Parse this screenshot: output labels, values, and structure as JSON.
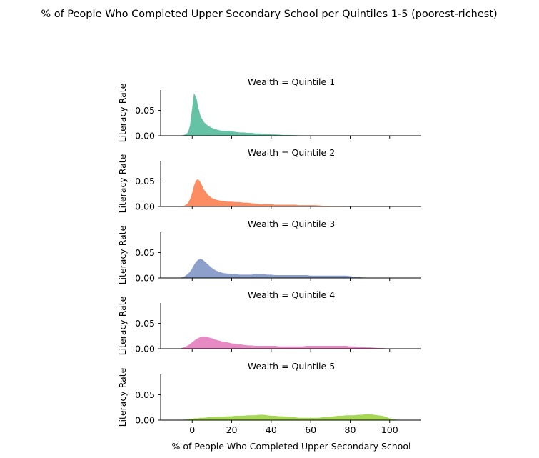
{
  "chart_data": {
    "type": "area",
    "title": "% of People Who Completed Upper Secondary School per Quintiles 1-5 (poorest-richest)",
    "xlabel": "% of People Who Completed Upper Secondary School",
    "ylabel": "Literacy Rate",
    "xlim": [
      -16,
      116
    ],
    "ylim": [
      0,
      0.09
    ],
    "x_ticks": [
      0,
      20,
      40,
      60,
      80,
      100
    ],
    "x_tick_labels": [
      "0",
      "20",
      "40",
      "60",
      "80",
      "100"
    ],
    "y_ticks": [
      0.0,
      0.05
    ],
    "y_tick_labels": [
      "0.00",
      "0.05"
    ],
    "grid": false,
    "facet_variable": "Wealth",
    "x": [
      -6,
      -4,
      -2,
      -1,
      0,
      1,
      2,
      3,
      4,
      5,
      6,
      8,
      10,
      12,
      14,
      16,
      18,
      20,
      22,
      24,
      26,
      28,
      30,
      32,
      34,
      36,
      38,
      40,
      42,
      44,
      46,
      48,
      50,
      52,
      54,
      56,
      58,
      60,
      62,
      64,
      66,
      68,
      70,
      72,
      74,
      76,
      78,
      80,
      82,
      84,
      86,
      88,
      90,
      92,
      94,
      96,
      98,
      100,
      102,
      104,
      106
    ],
    "series": [
      {
        "name": "Wealth = Quintile 1",
        "color": "#66c2a5",
        "values": [
          0,
          0.001,
          0.006,
          0.02,
          0.05,
          0.082,
          0.074,
          0.055,
          0.04,
          0.032,
          0.026,
          0.019,
          0.015,
          0.012,
          0.01,
          0.009,
          0.009,
          0.008,
          0.007,
          0.006,
          0.006,
          0.005,
          0.005,
          0.004,
          0.004,
          0.003,
          0.003,
          0.002,
          0.002,
          0.0015,
          0.001,
          0.001,
          0.0008,
          0.0005,
          0.0003,
          0.0002,
          0.0001,
          0,
          0,
          0,
          0,
          0,
          0,
          0,
          0,
          0,
          0,
          0,
          0,
          0,
          0,
          0,
          0,
          0,
          0,
          0,
          0,
          0,
          0,
          0,
          0
        ]
      },
      {
        "name": "Wealth = Quintile 2",
        "color": "#fc8d62",
        "values": [
          0,
          0.001,
          0.006,
          0.014,
          0.025,
          0.04,
          0.051,
          0.053,
          0.048,
          0.04,
          0.032,
          0.022,
          0.016,
          0.013,
          0.011,
          0.01,
          0.009,
          0.009,
          0.008,
          0.008,
          0.007,
          0.007,
          0.006,
          0.005,
          0.004,
          0.004,
          0.004,
          0.004,
          0.003,
          0.003,
          0.003,
          0.003,
          0.003,
          0.003,
          0.002,
          0.002,
          0.002,
          0.002,
          0.002,
          0.0015,
          0.001,
          0.0008,
          0.0005,
          0.0004,
          0.0003,
          0.0003,
          0.0002,
          0.0002,
          0.0002,
          0.0001,
          0.0001,
          0.0001,
          0.0001,
          0.0001,
          0.0001,
          0,
          0,
          0,
          0,
          0,
          0
        ]
      },
      {
        "name": "Wealth = Quintile 3",
        "color": "#8da0cb",
        "values": [
          0,
          0.002,
          0.008,
          0.012,
          0.018,
          0.025,
          0.031,
          0.035,
          0.037,
          0.036,
          0.033,
          0.026,
          0.019,
          0.014,
          0.011,
          0.009,
          0.008,
          0.007,
          0.007,
          0.006,
          0.006,
          0.006,
          0.006,
          0.007,
          0.007,
          0.007,
          0.006,
          0.006,
          0.005,
          0.005,
          0.005,
          0.005,
          0.005,
          0.005,
          0.005,
          0.005,
          0.005,
          0.004,
          0.004,
          0.004,
          0.004,
          0.004,
          0.004,
          0.004,
          0.004,
          0.004,
          0.004,
          0.003,
          0.002,
          0.001,
          0.0005,
          0.0002,
          0.0001,
          0,
          0,
          0,
          0,
          0,
          0,
          0,
          0
        ]
      },
      {
        "name": "Wealth = Quintile 4",
        "color": "#e78ac3",
        "values": [
          0,
          0.0025,
          0.006,
          0.009,
          0.012,
          0.015,
          0.018,
          0.02,
          0.022,
          0.023,
          0.023,
          0.022,
          0.02,
          0.017,
          0.015,
          0.013,
          0.012,
          0.01,
          0.009,
          0.008,
          0.007,
          0.006,
          0.006,
          0.005,
          0.005,
          0.005,
          0.005,
          0.005,
          0.005,
          0.004,
          0.004,
          0.004,
          0.004,
          0.004,
          0.004,
          0.004,
          0.005,
          0.005,
          0.005,
          0.005,
          0.005,
          0.005,
          0.005,
          0.005,
          0.005,
          0.005,
          0.005,
          0.004,
          0.004,
          0.003,
          0.003,
          0.002,
          0.002,
          0.0015,
          0.001,
          0.0008,
          0.0004,
          0.0002,
          0.0001,
          0,
          0
        ]
      },
      {
        "name": "Wealth = Quintile 5",
        "color": "#a6d854",
        "values": [
          0,
          0.0005,
          0.001,
          0.002,
          0.002,
          0.003,
          0.003,
          0.003,
          0.004,
          0.004,
          0.004,
          0.005,
          0.005,
          0.006,
          0.006,
          0.006,
          0.007,
          0.007,
          0.008,
          0.008,
          0.008,
          0.009,
          0.009,
          0.009,
          0.01,
          0.01,
          0.009,
          0.008,
          0.008,
          0.007,
          0.007,
          0.006,
          0.005,
          0.005,
          0.004,
          0.004,
          0.004,
          0.004,
          0.004,
          0.004,
          0.005,
          0.005,
          0.006,
          0.007,
          0.008,
          0.008,
          0.009,
          0.009,
          0.009,
          0.01,
          0.01,
          0.011,
          0.011,
          0.01,
          0.009,
          0.008,
          0.006,
          0.003,
          0.001,
          0.0003,
          0
        ]
      }
    ]
  }
}
